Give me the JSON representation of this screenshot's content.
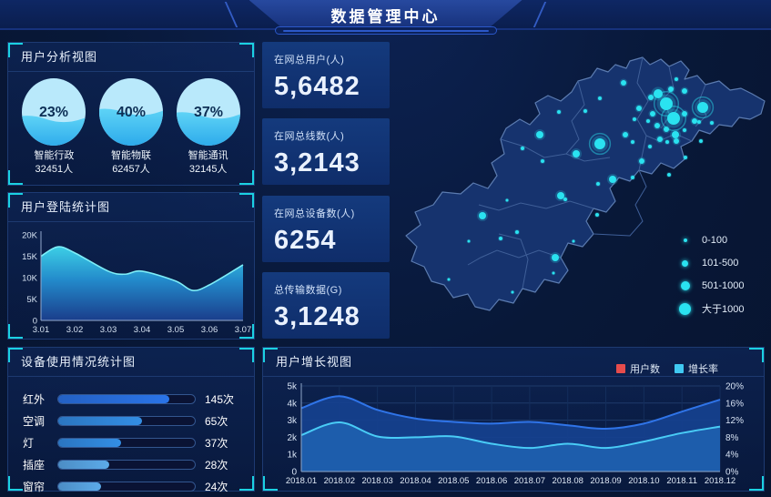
{
  "header": {
    "title": "数据管理中心"
  },
  "panels": {
    "user_analysis": {
      "title": "用户分析视图",
      "gauges": [
        {
          "pct": "23%",
          "label": "智能行政",
          "count": "32451人",
          "fill": 0.4
        },
        {
          "pct": "40%",
          "label": "智能物联",
          "count": "62457人",
          "fill": 0.5
        },
        {
          "pct": "37%",
          "label": "智能通讯",
          "count": "32145人",
          "fill": 0.45
        }
      ]
    },
    "login_stats": {
      "title": "用户登陆统计图"
    },
    "device_usage": {
      "title": "设备使用情况统计图",
      "unit": "次",
      "rows": [
        {
          "label": "红外",
          "value": "145次",
          "pct": 81,
          "color": "#2a74e8"
        },
        {
          "label": "空调",
          "value": "65次",
          "pct": 61,
          "color": "#338ee4"
        },
        {
          "label": "灯",
          "value": "37次",
          "pct": 46,
          "color": "#338ee4"
        },
        {
          "label": "插座",
          "value": "28次",
          "pct": 37,
          "color": "#5cabe9"
        },
        {
          "label": "窗帘",
          "value": "24次",
          "pct": 31,
          "color": "#5cabe9"
        }
      ]
    },
    "growth": {
      "title": "用户增长视图",
      "legend": [
        {
          "label": "用户数",
          "color": "#e64c4c"
        },
        {
          "label": "增长率",
          "color": "#40c9f2"
        }
      ]
    },
    "map": {
      "legend": [
        {
          "label": "0-100",
          "size": 4
        },
        {
          "label": "101-500",
          "size": 7
        },
        {
          "label": "501-1000",
          "size": 10
        },
        {
          "label": "大于1000",
          "size": 13
        }
      ],
      "dots": [
        [
          229,
          63,
          2,
          0
        ],
        [
          255,
          46,
          3,
          0
        ],
        [
          272,
          74,
          3,
          0
        ],
        [
          285,
          62,
          3,
          0
        ],
        [
          293,
          58,
          5,
          0
        ],
        [
          302,
          69,
          7,
          1
        ],
        [
          307,
          53,
          3,
          0
        ],
        [
          313,
          42,
          2,
          0
        ],
        [
          322,
          55,
          3,
          0
        ],
        [
          310,
          85,
          7,
          1
        ],
        [
          322,
          80,
          3,
          0
        ],
        [
          342,
          73,
          6,
          1
        ],
        [
          333,
          88,
          3,
          0
        ],
        [
          338,
          89,
          2,
          0
        ],
        [
          352,
          90,
          2,
          0
        ],
        [
          287,
          80,
          3,
          0
        ],
        [
          282,
          88,
          2,
          0
        ],
        [
          292,
          93,
          3,
          0
        ],
        [
          302,
          97,
          3,
          0
        ],
        [
          312,
          103,
          4,
          0
        ],
        [
          322,
          98,
          2,
          0
        ],
        [
          284,
          116,
          2,
          0
        ],
        [
          295,
          108,
          3,
          0
        ],
        [
          303,
          111,
          2,
          0
        ],
        [
          313,
          110,
          3,
          0
        ],
        [
          267,
          86,
          2,
          0
        ],
        [
          265,
          111,
          2,
          0
        ],
        [
          257,
          103,
          3,
          0
        ],
        [
          275,
          132,
          3,
          0
        ],
        [
          229,
          113,
          6,
          1
        ],
        [
          203,
          124,
          4,
          0
        ],
        [
          184,
          78,
          2,
          0
        ],
        [
          213,
          77,
          2,
          0
        ],
        [
          163,
          103,
          4,
          0
        ],
        [
          144,
          118,
          2,
          0
        ],
        [
          166,
          132,
          2,
          0
        ],
        [
          243,
          152,
          4,
          0
        ],
        [
          265,
          150,
          2,
          0
        ],
        [
          227,
          157,
          2,
          0
        ],
        [
          186,
          170,
          4,
          0
        ],
        [
          191,
          174,
          2,
          0
        ],
        [
          226,
          191,
          2,
          0
        ],
        [
          100,
          192,
          4,
          0
        ],
        [
          127,
          175,
          1.5,
          0
        ],
        [
          85,
          220,
          1.5,
          0
        ],
        [
          120,
          217,
          2,
          0
        ],
        [
          138,
          210,
          2,
          0
        ],
        [
          180,
          238,
          4,
          0
        ],
        [
          178,
          255,
          1.5,
          0
        ],
        [
          63,
          262,
          1.5,
          0
        ],
        [
          133,
          276,
          1.5,
          0
        ],
        [
          200,
          220,
          1.5,
          0
        ],
        [
          305,
          147,
          2,
          0
        ],
        [
          323,
          128,
          2,
          0
        ],
        [
          340,
          110,
          2,
          0
        ]
      ]
    }
  },
  "kpis": [
    {
      "label": "在网总用户(人)",
      "value": "5,6482"
    },
    {
      "label": "在网总线数(人)",
      "value": "3,2143"
    },
    {
      "label": "在网总设备数(人)",
      "value": "6254"
    },
    {
      "label": "总传输数据(G)",
      "value": "3,1248"
    }
  ],
  "colors": {
    "accent_cyan": "#1bd1e2",
    "dot_cyan": "#2ae2f0",
    "legend_red": "#e64c4c",
    "legend_cyan": "#40c9f2"
  },
  "chart_data": [
    {
      "type": "area",
      "title": "用户登陆统计图",
      "xlabel": "",
      "ylabel": "",
      "xticks": [
        "3.01",
        "3.02",
        "3.03",
        "3.04",
        "3.05",
        "3.06",
        "3.07"
      ],
      "yticks": [
        "0",
        "5K",
        "10K",
        "15K",
        "20K"
      ],
      "xlim": [
        3.01,
        3.07
      ],
      "ylim": [
        0,
        20000
      ],
      "points_x": [
        3.01,
        3.015,
        3.02,
        3.03,
        3.035,
        3.04,
        3.05,
        3.055,
        3.06,
        3.07
      ],
      "points_y": [
        15000,
        17200,
        15800,
        11500,
        10800,
        11500,
        9200,
        7000,
        8300,
        13000
      ],
      "grid": false,
      "legend_position": "none"
    },
    {
      "type": "area",
      "title": "用户增长视图",
      "categories": [
        "2018.01",
        "2018.02",
        "2018.03",
        "2018.04",
        "2018.05",
        "2018.06",
        "2018.07",
        "2018.08",
        "2018.09",
        "2018.10",
        "2018.11",
        "2018.12"
      ],
      "series": [
        {
          "name": "用户数",
          "axis": "left",
          "values": [
            3700,
            4400,
            3600,
            3100,
            2900,
            2800,
            2900,
            2700,
            2500,
            2800,
            3500,
            4200
          ]
        },
        {
          "name": "增长率",
          "axis": "right",
          "values": [
            8.5,
            11.5,
            8.2,
            8.0,
            8.2,
            6.5,
            5.5,
            6.5,
            5.5,
            7.0,
            9.0,
            10.5
          ]
        }
      ],
      "ylim_left": [
        0,
        5000
      ],
      "ylim_right": [
        0,
        20
      ],
      "yticks_left": [
        "0",
        "1k",
        "2k",
        "3k",
        "4k",
        "5k"
      ],
      "yticks_right": [
        "0%",
        "4%",
        "8%",
        "12%",
        "16%",
        "20%"
      ],
      "grid": true,
      "legend_position": "top-right"
    },
    {
      "type": "bar",
      "title": "设备使用情况统计图",
      "orientation": "horizontal",
      "categories": [
        "红外",
        "空调",
        "灯",
        "插座",
        "窗帘"
      ],
      "values": [
        145,
        65,
        37,
        28,
        24
      ],
      "unit": "次"
    },
    {
      "type": "pie",
      "title": "用户分析视图",
      "categories": [
        "智能行政",
        "智能物联",
        "智能通讯"
      ],
      "values": [
        23,
        40,
        37
      ],
      "counts": [
        32451,
        62457,
        32145
      ]
    }
  ]
}
